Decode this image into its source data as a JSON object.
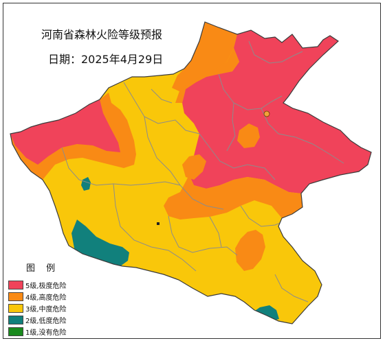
{
  "map": {
    "title": "河南省森林火险等级预报",
    "date_label": "日期：2025年4月29日",
    "colors": {
      "level5": "#F0435A",
      "level4": "#F98A15",
      "level3": "#F9C70A",
      "level2": "#11807C",
      "level1": "#1A8A1E",
      "city_boundary": "#8C8C8C",
      "border": "#3A3A3A"
    },
    "legend": {
      "title": "图  例",
      "items": [
        {
          "label": "5级,极度危险",
          "color": "#F0435A"
        },
        {
          "label": "4级,高度危险",
          "color": "#F98A15"
        },
        {
          "label": "3级,中度危险",
          "color": "#F9C70A"
        },
        {
          "label": "2级,低度危险",
          "color": "#11807C"
        },
        {
          "label": "1级,没有危险",
          "color": "#1A8A1E"
        }
      ]
    }
  }
}
